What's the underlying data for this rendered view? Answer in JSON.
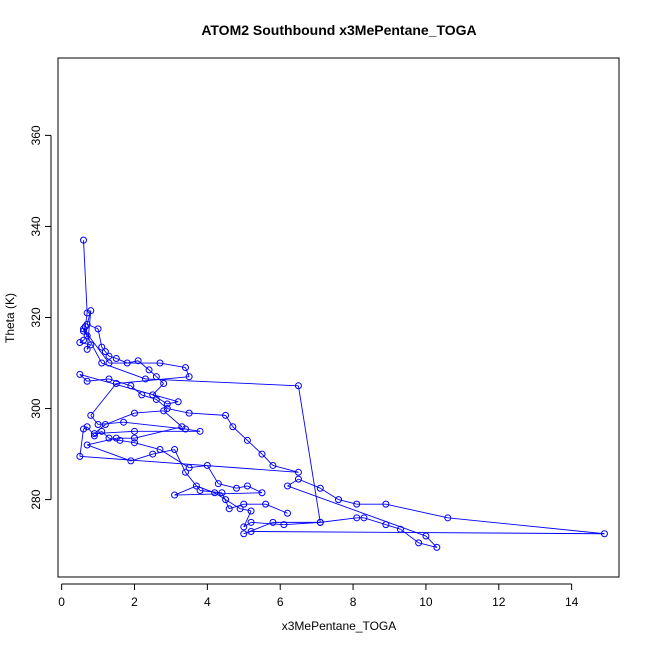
{
  "chart_data": {
    "type": "line",
    "title": "ATOM2 Southbound x3MePentane_TOGA",
    "xlabel": "x3MePentane_TOGA",
    "ylabel": "Theta (K)",
    "xlim": [
      -0.1,
      15.3
    ],
    "ylim": [
      263,
      377
    ],
    "x_ticks": [
      0,
      2,
      4,
      6,
      8,
      10,
      12,
      14
    ],
    "y_ticks": [
      280,
      300,
      320,
      340,
      360
    ],
    "grid": false,
    "series": [
      {
        "color": "#0000ff",
        "marker": "open-circle",
        "points": [
          [
            0.6,
            337
          ],
          [
            0.7,
            321
          ],
          [
            0.65,
            318
          ],
          [
            0.6,
            317
          ],
          [
            0.7,
            316
          ],
          [
            0.6,
            315
          ],
          [
            0.5,
            314.5
          ],
          [
            0.8,
            314
          ],
          [
            0.7,
            313
          ],
          [
            0.8,
            321.5
          ],
          [
            0.7,
            318.5
          ],
          [
            1.0,
            317.5
          ],
          [
            1.1,
            313.5
          ],
          [
            1.2,
            312.5
          ],
          [
            1.3,
            311.5
          ],
          [
            1.5,
            311
          ],
          [
            1.8,
            310
          ],
          [
            2.1,
            310.5
          ],
          [
            2.4,
            308.5
          ],
          [
            2.6,
            307
          ],
          [
            2.8,
            305.5
          ],
          [
            2.5,
            303
          ],
          [
            2.9,
            301
          ],
          [
            3.2,
            301.5
          ],
          [
            0.5,
            307.5
          ],
          [
            0.7,
            306
          ],
          [
            1.3,
            306.5
          ],
          [
            1.9,
            305
          ],
          [
            2.2,
            303
          ],
          [
            2.6,
            302
          ],
          [
            2.9,
            300
          ],
          [
            3.5,
            299
          ],
          [
            4.5,
            298.5
          ],
          [
            4.7,
            296
          ],
          [
            5.1,
            293
          ],
          [
            5.5,
            290
          ],
          [
            5.8,
            287.5
          ],
          [
            6.5,
            286
          ],
          [
            0.5,
            289.5
          ],
          [
            0.6,
            295.5
          ],
          [
            0.7,
            296
          ],
          [
            0.9,
            294
          ],
          [
            1.1,
            295
          ],
          [
            1.3,
            293.5
          ],
          [
            1.6,
            293
          ],
          [
            2.0,
            292.5
          ],
          [
            2.7,
            291
          ],
          [
            3.5,
            287
          ],
          [
            4.0,
            287.5
          ],
          [
            4.3,
            283.5
          ],
          [
            4.8,
            282.5
          ],
          [
            5.1,
            283
          ],
          [
            5.5,
            281.5
          ],
          [
            3.1,
            281
          ],
          [
            3.7,
            283
          ],
          [
            4.2,
            281.5
          ],
          [
            4.5,
            280
          ],
          [
            4.9,
            278
          ],
          [
            5.2,
            277.5
          ],
          [
            5.0,
            274
          ],
          [
            5.2,
            275
          ],
          [
            6.1,
            274.5
          ],
          [
            7.1,
            275
          ],
          [
            8.1,
            276
          ],
          [
            8.3,
            276
          ],
          [
            8.9,
            274.5
          ],
          [
            9.3,
            273.5
          ],
          [
            9.8,
            270.5
          ],
          [
            10.3,
            269.5
          ],
          [
            10.0,
            272
          ],
          [
            6.2,
            283
          ],
          [
            6.5,
            284.5
          ],
          [
            7.1,
            282.5
          ],
          [
            7.6,
            280
          ],
          [
            8.1,
            279
          ],
          [
            8.9,
            279
          ],
          [
            10.6,
            276
          ],
          [
            14.9,
            272.5
          ],
          [
            5.2,
            273
          ],
          [
            5.0,
            272.5
          ],
          [
            5.8,
            275
          ],
          [
            7.1,
            275
          ],
          [
            6.5,
            305
          ],
          [
            2.3,
            306.5
          ],
          [
            1.1,
            310
          ],
          [
            0.6,
            317.5
          ],
          [
            1.3,
            310
          ],
          [
            2.7,
            310
          ],
          [
            3.4,
            309
          ],
          [
            3.5,
            307
          ],
          [
            1.5,
            305.5
          ],
          [
            0.8,
            298.5
          ],
          [
            1.0,
            296.5
          ],
          [
            1.7,
            297
          ],
          [
            3.4,
            295.5
          ],
          [
            3.8,
            295
          ],
          [
            2.0,
            295
          ],
          [
            0.9,
            294.5
          ],
          [
            1.2,
            296.5
          ],
          [
            2.0,
            299
          ],
          [
            2.8,
            299.5
          ],
          [
            3.3,
            296
          ],
          [
            2.0,
            293.5
          ],
          [
            1.5,
            293.5
          ],
          [
            0.7,
            292
          ],
          [
            1.9,
            288.5
          ],
          [
            2.5,
            290
          ],
          [
            3.1,
            291
          ],
          [
            3.4,
            286
          ],
          [
            3.8,
            282
          ],
          [
            4.4,
            281.5
          ],
          [
            4.6,
            278
          ],
          [
            5.0,
            279
          ],
          [
            5.6,
            279
          ],
          [
            6.2,
            277
          ]
        ]
      }
    ]
  }
}
